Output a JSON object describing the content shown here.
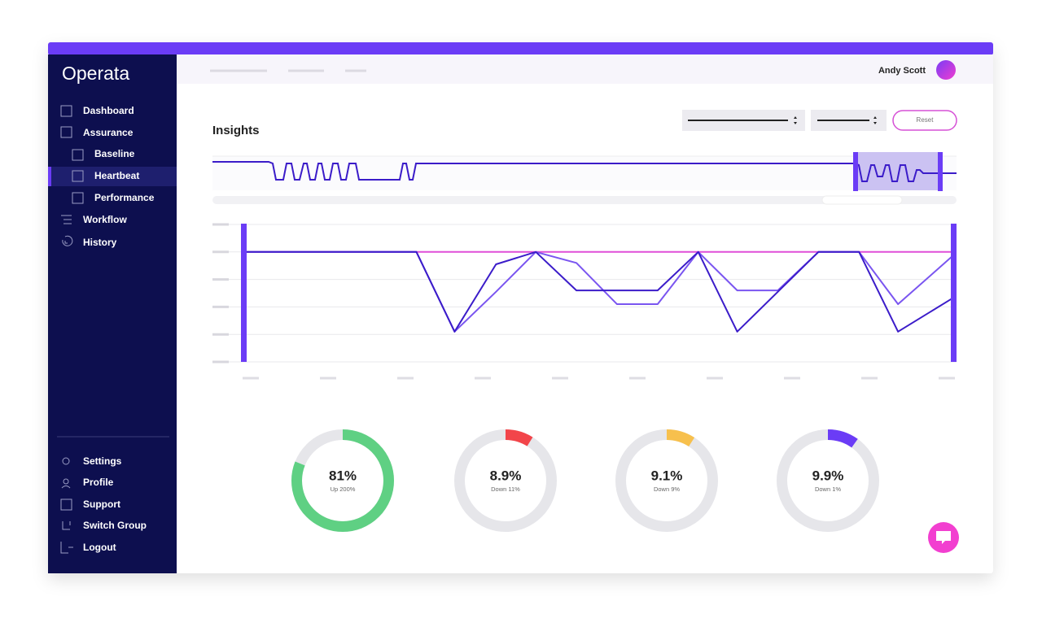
{
  "header": {
    "logo": "Operata",
    "user": "Andy Scott"
  },
  "nav": {
    "items": [
      "Dashboard",
      "Assurance",
      "Baseline",
      "Heartbeat",
      "Performance",
      "Workflow",
      "History"
    ],
    "footer": [
      "Settings",
      "Profile",
      "Support",
      "Switch Group",
      "Logout"
    ]
  },
  "insights": {
    "title": "Insights",
    "reset": "Reset",
    "chart_data": {
      "type": "line",
      "x": [
        0,
        210,
        257,
        308,
        357,
        407,
        457,
        507,
        557,
        605,
        655,
        705,
        755,
        803,
        872
      ],
      "xlim": [
        0,
        872
      ],
      "ylim": [
        0,
        5
      ],
      "yticks": [
        0,
        1,
        2,
        3,
        4,
        5
      ],
      "grid": true,
      "series": [
        {
          "color": "#e04fd8",
          "values": [
            4,
            4,
            4,
            4,
            4,
            4,
            4,
            4,
            4,
            4,
            4,
            4,
            4,
            4,
            4
          ]
        },
        {
          "color": "#7a55f0",
          "values": [
            4,
            4,
            1.1,
            2.55,
            4,
            3.6,
            2.1,
            2.1,
            4,
            2.6,
            2.6,
            4,
            4,
            2.1,
            3.9
          ]
        },
        {
          "color": "#3b1cc9",
          "values": [
            4,
            4,
            1.1,
            3.55,
            4,
            2.6,
            2.6,
            2.6,
            4,
            1.1,
            2.55,
            4,
            4,
            1.1,
            2.35
          ]
        }
      ]
    }
  },
  "donuts": {
    "type": "donut",
    "values": [
      81,
      8.9,
      9.1,
      9.9
    ],
    "value_labels": [
      "81%",
      "8.9%",
      "9.1%",
      "9.9%"
    ],
    "captions": [
      "Up 200%",
      "Down 11%",
      "Down 9%",
      "Down 1%"
    ],
    "colors": [
      "#5fd083",
      "#f2454a",
      "#f7c04d",
      "#6b3cf6"
    ],
    "track_color": "#e6e6ea"
  }
}
